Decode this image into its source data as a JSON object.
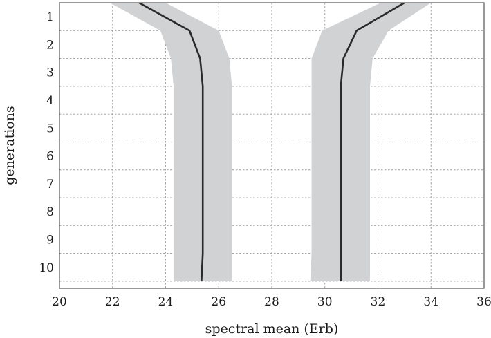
{
  "chart_data": {
    "type": "line",
    "title": "",
    "xlabel": "spectral mean (Erb)",
    "ylabel": "generations",
    "xlim": [
      20,
      36
    ],
    "ylim": [
      0.5,
      10.75
    ],
    "y_inverted": true,
    "grid": true,
    "x_ticks": [
      "20",
      "22",
      "24",
      "26",
      "28",
      "30",
      "32",
      "34",
      "36"
    ],
    "y_ticks": [
      "1",
      "2",
      "3",
      "4",
      "5",
      "6",
      "7",
      "8",
      "9",
      "10"
    ],
    "series": [
      {
        "color": "#2a2a2a",
        "band_color": "#d1d2d4",
        "generations": [
          0.5,
          1.5,
          2.5,
          3.5,
          4.5,
          5.5,
          6.5,
          7.5,
          8.5,
          9.5,
          10.5
        ],
        "mean": [
          23.0,
          24.9,
          25.3,
          25.4,
          25.4,
          25.4,
          25.4,
          25.4,
          25.4,
          25.4,
          25.35
        ],
        "lower": [
          21.9,
          23.8,
          24.2,
          24.3,
          24.3,
          24.3,
          24.3,
          24.3,
          24.3,
          24.3,
          24.3
        ],
        "upper": [
          24.0,
          26.0,
          26.4,
          26.5,
          26.5,
          26.5,
          26.5,
          26.5,
          26.5,
          26.5,
          26.5
        ]
      },
      {
        "color": "#2a2a2a",
        "band_color": "#d1d2d4",
        "generations": [
          0.5,
          1.5,
          2.5,
          3.5,
          4.5,
          5.5,
          6.5,
          7.5,
          8.5,
          9.5,
          10.5
        ],
        "mean": [
          33.0,
          31.2,
          30.7,
          30.6,
          30.6,
          30.6,
          30.6,
          30.6,
          30.6,
          30.6,
          30.6
        ],
        "lower": [
          32.1,
          29.9,
          29.5,
          29.5,
          29.5,
          29.5,
          29.5,
          29.5,
          29.5,
          29.5,
          29.45
        ],
        "upper": [
          34.0,
          32.4,
          31.8,
          31.7,
          31.7,
          31.7,
          31.7,
          31.7,
          31.7,
          31.7,
          31.7
        ]
      }
    ]
  }
}
